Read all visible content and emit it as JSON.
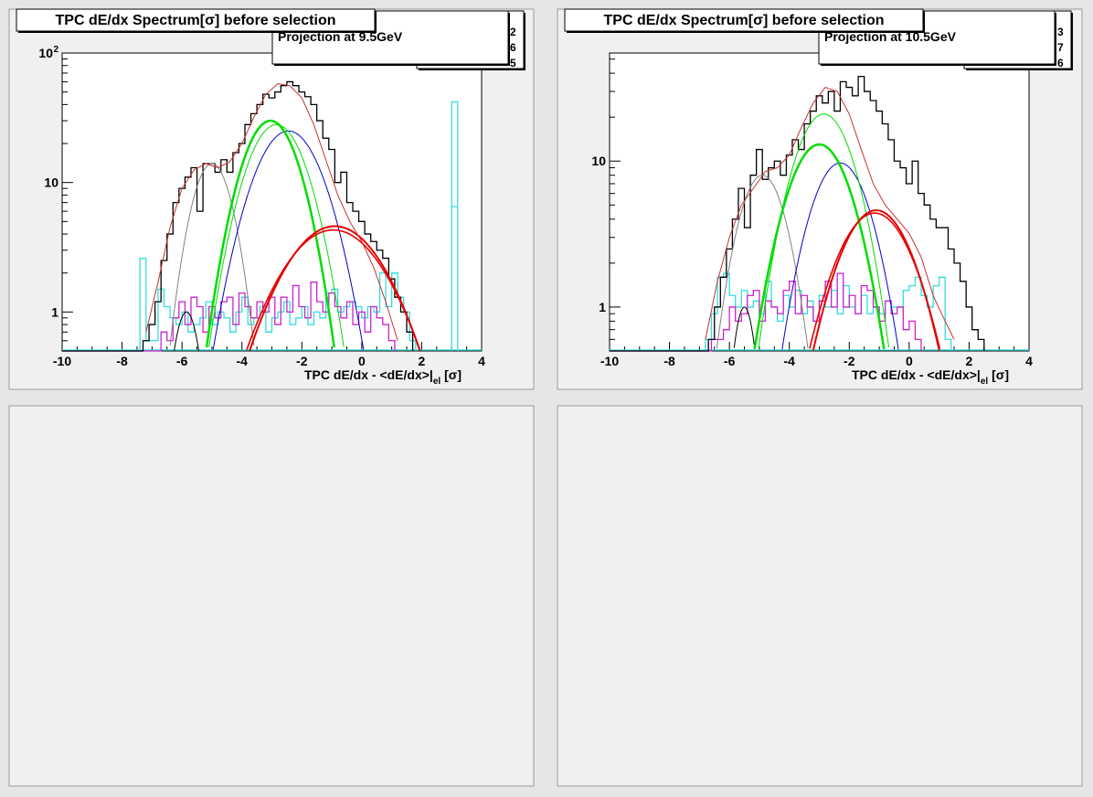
{
  "canvas": {
    "background": "#e6e6e6"
  },
  "colors": {
    "data": "#000000",
    "total_fit": "#c83232",
    "electron": "#e60000",
    "pion": "#00dd00",
    "kaon": "#0000c8",
    "proton": "#808080",
    "deuteron": "#000000",
    "hist_cyan": "#33dddd",
    "hist_magenta": "#cc22cc"
  },
  "chart_data": [
    {
      "type": "line",
      "title": "TPC dE/dx Spectrum[σ] before selection",
      "stats_label": "Projection at 9.5GeV",
      "stats_digits": [
        "2",
        "6",
        "5"
      ],
      "xlabel_main": "TPC dE/dx - <dE/dx>|",
      "xlabel_sub": "el",
      "xlabel_tail": " [σ]",
      "log_y": true,
      "xlim": [
        -10,
        4
      ],
      "ylim": [
        0.5,
        100
      ],
      "x_ticks": [
        "-10",
        "-8",
        "-6",
        "-4",
        "-2",
        "0",
        "2",
        "4"
      ],
      "y_ticks": [
        {
          "value": 1,
          "label": "1"
        },
        {
          "value": 10,
          "label": "10"
        },
        {
          "value": 100,
          "label": "10",
          "sup": "2"
        }
      ],
      "hist_black": {
        "x0": -7.3,
        "dx": 0.2,
        "values": [
          0.6,
          0.8,
          1.2,
          2.5,
          4.0,
          7.0,
          9.0,
          11.0,
          13.0,
          6.0,
          14.0,
          14.0,
          12.0,
          15.0,
          12.0,
          17.0,
          20.0,
          28.0,
          34.0,
          40.0,
          48.0,
          45.0,
          50.0,
          56.0,
          60.0,
          56.0,
          50.0,
          46.0,
          40.0,
          30.0,
          22.0,
          18.0,
          10.0,
          12.0,
          7.0,
          6.0,
          5.0,
          4.0,
          3.5,
          3.0,
          2.6,
          1.8,
          1.3,
          1.0,
          0.7
        ]
      },
      "hist_cyan": {
        "x0": -7.4,
        "dx": 0.2,
        "values": [
          2.6,
          0.6,
          0.6,
          1.5,
          1.1,
          0.9,
          0.8,
          1.0,
          0.7,
          0.8,
          0.9,
          1.2,
          0.8,
          1.0,
          0.9,
          0.7,
          1.0,
          1.3,
          0.8,
          0.9,
          1.1,
          0.7,
          0.9,
          1.0,
          1.2,
          0.8,
          0.9,
          1.1,
          0.8,
          1.0,
          0.9,
          1.4,
          1.5,
          1.0,
          1.1,
          1.2,
          1.1,
          0.9,
          1.1,
          1.0,
          2.0,
          1.1,
          2.0,
          1.3,
          1.0,
          0.6
        ],
        "spike": {
          "x": 3.0,
          "values": [
            42,
            6.5
          ]
        }
      },
      "hist_magenta": {
        "x0": -6.9,
        "dx": 0.2,
        "values": [
          0.5,
          0.7,
          0.6,
          0.9,
          1.2,
          0.8,
          1.3,
          1.1,
          0.7,
          1.1,
          0.9,
          1.2,
          1.3,
          0.8,
          1.4,
          1.1,
          0.9,
          1.2,
          1.0,
          1.3,
          0.8,
          1.3,
          1.0,
          1.6,
          1.1,
          0.9,
          1.7,
          1.2,
          1.0,
          1.4,
          1.1,
          0.9,
          1.2,
          0.8,
          1.0,
          0.7,
          1.1,
          0.9,
          0.8,
          0.6
        ]
      },
      "fits": {
        "electron_a": {
          "amp": 4.6,
          "mu": -0.9,
          "sigma": 1.35
        },
        "electron_b": {
          "amp": 4.3,
          "mu": -0.95,
          "sigma": 1.4
        },
        "pion_a": {
          "amp": 30.0,
          "mu": -3.05,
          "sigma": 0.75
        },
        "pion_b": {
          "amp": 28.0,
          "mu": -2.85,
          "sigma": 0.8
        },
        "kaon": {
          "amp": 25.0,
          "mu": -2.45,
          "sigma": 0.9
        },
        "proton": {
          "amp": 14.0,
          "mu": -5.0,
          "sigma": 0.55
        },
        "deuteron": {
          "amp": 1.0,
          "mu": -5.85,
          "sigma": 0.35
        },
        "total": {
          "x": [
            -7.2,
            -6.8,
            -6.4,
            -6.0,
            -5.6,
            -5.2,
            -4.8,
            -4.4,
            -4.0,
            -3.6,
            -3.2,
            -2.8,
            -2.4,
            -2.0,
            -1.6,
            -1.2,
            -0.8,
            -0.4,
            0.0,
            0.4,
            0.8,
            1.2
          ],
          "y": [
            0.7,
            1.7,
            4.5,
            9.0,
            12.5,
            14.0,
            13.0,
            14.5,
            20.0,
            32.0,
            48.0,
            58.0,
            56.0,
            45.0,
            28.0,
            15.0,
            8.0,
            5.0,
            3.5,
            2.2,
            1.2,
            0.6
          ]
        }
      }
    },
    {
      "type": "line",
      "title": "TPC dE/dx Spectrum[σ] before selection",
      "stats_label": "Projection at 10.5GeV",
      "stats_digits": [
        "3",
        "7",
        "6"
      ],
      "xlabel_main": "TPC dE/dx - <dE/dx>|",
      "xlabel_sub": "el",
      "xlabel_tail": " [σ]",
      "log_y": true,
      "xlim": [
        -10,
        4
      ],
      "ylim": [
        0.5,
        55
      ],
      "x_ticks": [
        "-10",
        "-8",
        "-6",
        "-4",
        "-2",
        "0",
        "2",
        "4"
      ],
      "y_ticks": [
        {
          "value": 1,
          "label": "1"
        },
        {
          "value": 10,
          "label": "10"
        }
      ],
      "hist_black": {
        "x0": -6.7,
        "dx": 0.2,
        "values": [
          0.6,
          1.0,
          1.6,
          2.5,
          4.0,
          6.5,
          3.5,
          8.0,
          12.0,
          7.5,
          9.0,
          10.0,
          8.0,
          11.0,
          14.0,
          12.0,
          18.0,
          22.0,
          28.0,
          25.0,
          30.0,
          22.0,
          35.0,
          32.0,
          28.0,
          38.0,
          30.0,
          26.0,
          22.0,
          18.0,
          14.0,
          10.0,
          9.0,
          7.0,
          10.0,
          6.0,
          5.0,
          4.0,
          3.5,
          3.5,
          2.5,
          2.0,
          1.5,
          1.0,
          0.7,
          0.6
        ]
      },
      "hist_cyan": {
        "x0": -6.8,
        "dx": 0.2,
        "values": [
          0.6,
          0.9,
          1.6,
          1.7,
          1.2,
          1.0,
          1.3,
          1.0,
          1.1,
          0.9,
          1.5,
          1.0,
          0.8,
          1.2,
          1.0,
          1.3,
          0.9,
          1.1,
          0.8,
          1.2,
          1.0,
          1.3,
          0.9,
          1.4,
          1.0,
          0.9,
          1.2,
          0.9,
          1.0,
          0.9,
          1.1,
          1.0,
          1.0,
          1.3,
          1.4,
          1.6,
          1.2,
          1.0,
          1.4,
          1.6,
          0.6
        ]
      },
      "hist_magenta": {
        "x0": -6.8,
        "dx": 0.2,
        "values": [
          0.5,
          0.6,
          0.6,
          0.7,
          1.0,
          0.8,
          0.9,
          1.2,
          1.3,
          0.8,
          1.1,
          1.0,
          0.9,
          1.3,
          1.5,
          0.9,
          1.2,
          1.0,
          0.8,
          1.1,
          1.5,
          1.0,
          1.7,
          1.0,
          1.2,
          0.9,
          1.4,
          1.3,
          1.0,
          0.8,
          1.1,
          0.9,
          1.0,
          0.7,
          0.8,
          0.6
        ]
      },
      "fits": {
        "electron_a": {
          "amp": 4.6,
          "mu": -1.1,
          "sigma": 1.0
        },
        "electron_b": {
          "amp": 4.4,
          "mu": -1.15,
          "sigma": 1.05
        },
        "pion_a": {
          "amp": 13.0,
          "mu": -3.0,
          "sigma": 0.85
        },
        "pion_b": {
          "amp": 21.0,
          "mu": -2.85,
          "sigma": 0.8
        },
        "kaon": {
          "amp": 9.7,
          "mu": -2.3,
          "sigma": 0.8
        },
        "proton": {
          "amp": 8.0,
          "mu": -4.9,
          "sigma": 0.65
        },
        "deuteron": {
          "amp": 1.0,
          "mu": -5.5,
          "sigma": 0.3
        },
        "total": {
          "x": [
            -6.8,
            -6.4,
            -6.0,
            -5.6,
            -5.2,
            -4.8,
            -4.4,
            -4.0,
            -3.6,
            -3.2,
            -2.8,
            -2.4,
            -2.0,
            -1.6,
            -1.2,
            -0.8,
            -0.4,
            0.0,
            0.4,
            0.8,
            1.2,
            1.5
          ],
          "y": [
            0.6,
            1.5,
            3.0,
            5.0,
            6.5,
            8.5,
            9.0,
            11.0,
            17.0,
            25.0,
            32.0,
            30.0,
            21.0,
            12.0,
            7.0,
            5.0,
            4.0,
            3.2,
            2.2,
            1.2,
            0.8,
            0.6
          ]
        }
      }
    }
  ]
}
